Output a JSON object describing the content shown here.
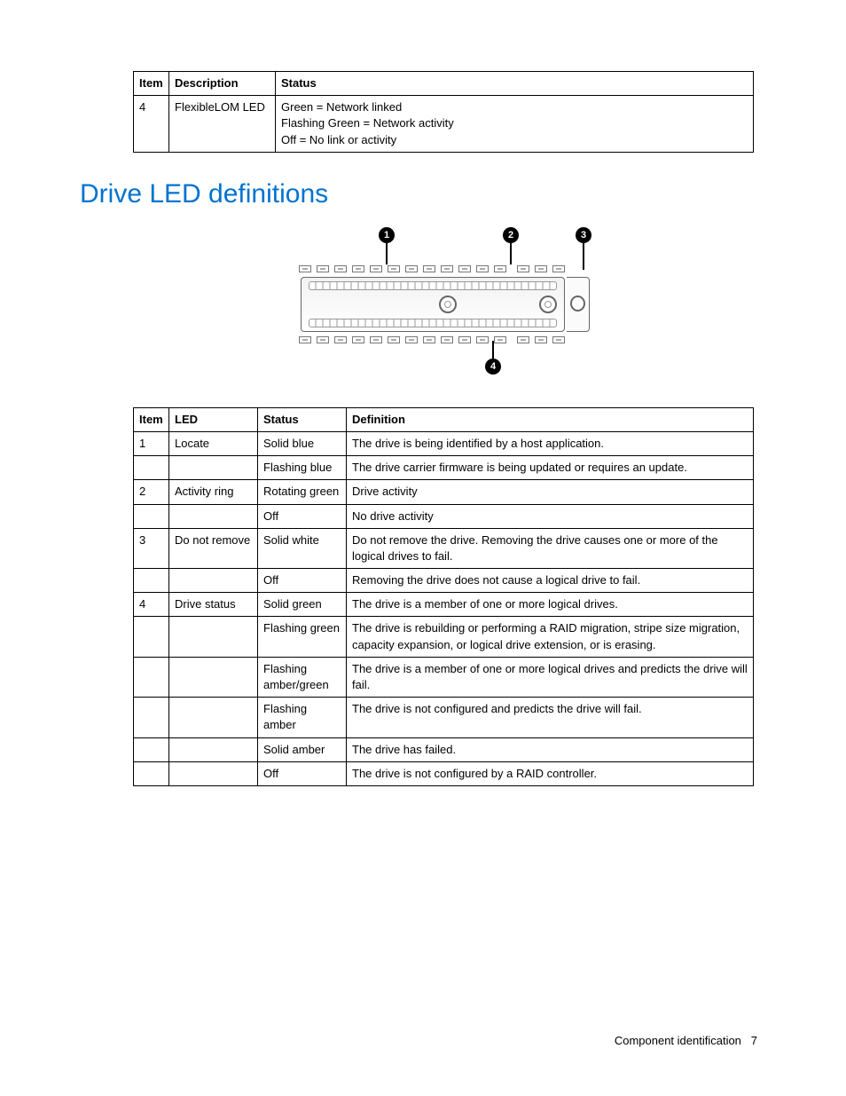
{
  "table1": {
    "headers": {
      "item": "Item",
      "description": "Description",
      "status": "Status"
    },
    "rows": [
      {
        "item": "4",
        "description": "FlexibleLOM LED",
        "status": "Green = Network linked\nFlashing Green = Network activity\nOff = No link or activity"
      }
    ]
  },
  "section_title": "Drive LED definitions",
  "callouts": {
    "c1": "1",
    "c2": "2",
    "c3": "3",
    "c4": "4"
  },
  "table2": {
    "headers": {
      "item": "Item",
      "led": "LED",
      "status": "Status",
      "definition": "Definition"
    },
    "rows": [
      {
        "item": "1",
        "led": "Locate",
        "status": "Solid blue",
        "definition": "The drive is being identified by a host application."
      },
      {
        "item": "",
        "led": "",
        "status": "Flashing blue",
        "definition": "The drive carrier firmware is being updated or requires an update."
      },
      {
        "item": "2",
        "led": "Activity ring",
        "status": "Rotating green",
        "definition": "Drive activity"
      },
      {
        "item": "",
        "led": "",
        "status": "Off",
        "definition": "No drive activity"
      },
      {
        "item": "3",
        "led": "Do not remove",
        "status": "Solid white",
        "definition": "Do not remove the drive. Removing the drive causes one or more of the logical drives to fail."
      },
      {
        "item": "",
        "led": "",
        "status": "Off",
        "definition": "Removing the drive does not cause a logical drive to fail."
      },
      {
        "item": "4",
        "led": "Drive status",
        "status": "Solid green",
        "definition": "The drive is a member of one or more logical drives."
      },
      {
        "item": "",
        "led": "",
        "status": "Flashing green",
        "definition": "The drive is rebuilding or performing a RAID migration, stripe size migration, capacity expansion, or logical drive extension, or is erasing."
      },
      {
        "item": "",
        "led": "",
        "status": "Flashing amber/green",
        "definition": "The drive is a member of one or more logical drives and predicts the drive will fail."
      },
      {
        "item": "",
        "led": "",
        "status": "Flashing amber",
        "definition": "The drive is not configured and predicts the drive will fail."
      },
      {
        "item": "",
        "led": "",
        "status": "Solid amber",
        "definition": "The drive has failed."
      },
      {
        "item": "",
        "led": "",
        "status": "Off",
        "definition": "The drive is not configured by a RAID controller."
      }
    ]
  },
  "footer": {
    "text": "Component identification",
    "page": "7"
  }
}
